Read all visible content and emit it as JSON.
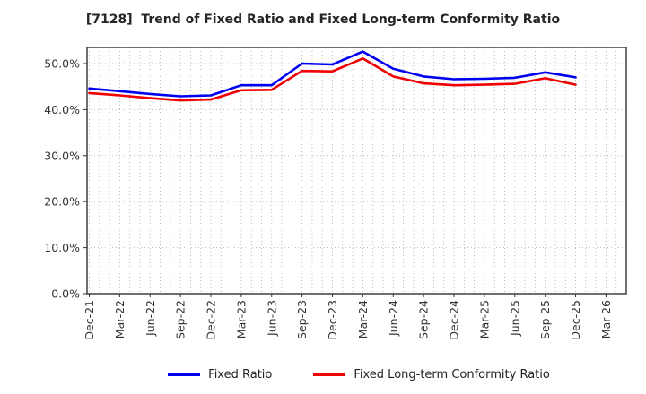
{
  "title": "[7128]  Trend of Fixed Ratio and Fixed Long-term Conformity Ratio",
  "colors": {
    "fixed_ratio_line": "#0000f0",
    "fixed_lt_line": "#f00000",
    "grid": "#b3b3b3",
    "spine": "#333333",
    "tick_label": "#333333",
    "title_text": "#262626"
  },
  "chart_data": {
    "type": "line",
    "title": "[7128]  Trend of Fixed Ratio and Fixed Long-term Conformity Ratio",
    "categories": [
      "Dec-21",
      "Mar-22",
      "Jun-22",
      "Sep-22",
      "Dec-22",
      "Mar-23",
      "Jun-23",
      "Sep-23",
      "Dec-23",
      "Mar-24",
      "Jun-24",
      "Sep-24",
      "Dec-24",
      "Mar-25",
      "Jun-25",
      "Sep-25",
      "Dec-25",
      "Mar-26"
    ],
    "series": [
      {
        "name": "Fixed Ratio",
        "color": "#0000f0",
        "values": [
          44.6,
          44.0,
          43.4,
          42.9,
          43.1,
          45.3,
          45.3,
          50.0,
          49.8,
          52.6,
          48.9,
          47.2,
          46.6,
          46.7,
          46.9,
          48.1,
          47.0,
          null
        ]
      },
      {
        "name": "Fixed Long-term Conformity Ratio",
        "color": "#f00000",
        "values": [
          43.6,
          43.1,
          42.5,
          42.0,
          42.2,
          44.2,
          44.3,
          48.4,
          48.3,
          51.1,
          47.2,
          45.7,
          45.3,
          45.4,
          45.6,
          46.8,
          45.4,
          null
        ]
      }
    ],
    "xlabel": "",
    "ylabel": "",
    "yticks": [
      "0.0%",
      "10.0%",
      "20.0%",
      "30.0%",
      "40.0%",
      "50.0%"
    ],
    "ytick_values": [
      0,
      10,
      20,
      30,
      40,
      50
    ],
    "ylim": [
      0,
      53.5
    ],
    "grid": true,
    "minor_x_gridlines_per_category": 3,
    "legend_position": "bottom"
  }
}
